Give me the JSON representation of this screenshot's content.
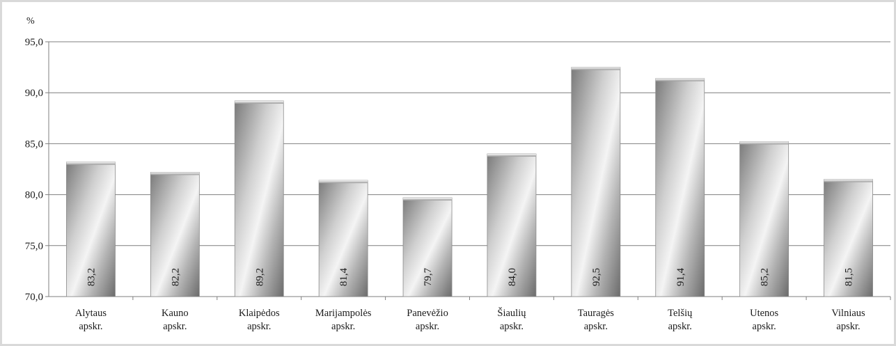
{
  "chart_data": {
    "type": "bar",
    "unit_label": "%",
    "categories": [
      [
        "Alytaus",
        "apskr."
      ],
      [
        "Kauno",
        "apskr."
      ],
      [
        "Klaipėdos",
        "apskr."
      ],
      [
        "Marijampolės",
        "apskr."
      ],
      [
        "Panevėžio",
        "apskr."
      ],
      [
        "Šiaulių",
        "apskr."
      ],
      [
        "Tauragės",
        "apskr."
      ],
      [
        "Telšių",
        "apskr."
      ],
      [
        "Utenos",
        "apskr."
      ],
      [
        "Vilniaus",
        "apskr."
      ]
    ],
    "values": [
      83.2,
      82.2,
      89.2,
      81.4,
      79.7,
      84.0,
      92.5,
      91.4,
      85.2,
      81.5
    ],
    "data_labels": [
      "83,2",
      "82,2",
      "89,2",
      "81,4",
      "79,7",
      "84,0",
      "92,5",
      "91,4",
      "85,2",
      "81,5"
    ],
    "ylim": [
      70,
      95
    ],
    "yticks": [
      70,
      75,
      80,
      85,
      90,
      95
    ],
    "ytick_labels": [
      "70,0",
      "75,0",
      "80,0",
      "85,0",
      "90,0",
      "95,0"
    ],
    "grid": true,
    "legend": "none",
    "colors": {
      "bar_light": "#f2f2f2",
      "bar_mid": "#a6a6a6",
      "bar_dark": "#6e6e6e",
      "grid": "#7f7f7f",
      "frame": "#d9d9d9"
    }
  }
}
